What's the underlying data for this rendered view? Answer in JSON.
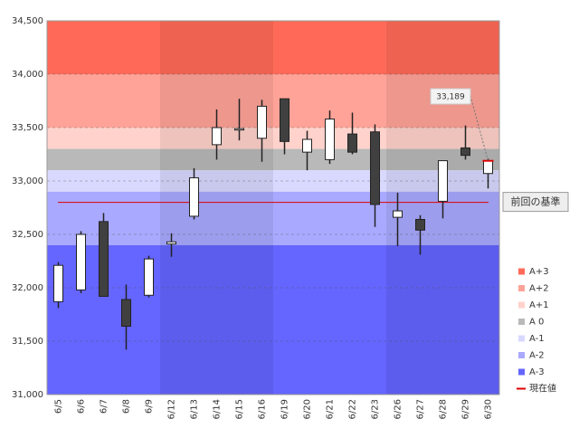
{
  "chart_data": {
    "type": "candlestick",
    "categories": [
      "6/5",
      "6/6",
      "6/7",
      "6/8",
      "6/9",
      "6/12",
      "6/13",
      "6/14",
      "6/15",
      "6/16",
      "6/19",
      "6/20",
      "6/21",
      "6/22",
      "6/23",
      "6/26",
      "6/27",
      "6/28",
      "6/29",
      "6/30"
    ],
    "open": [
      31870,
      31980,
      32620,
      31890,
      31930,
      32410,
      32670,
      33340,
      33480,
      33400,
      33770,
      33270,
      33200,
      33440,
      33460,
      32660,
      32640,
      32810,
      33310,
      33070
    ],
    "high": [
      32240,
      32530,
      32700,
      32030,
      32300,
      32510,
      33120,
      33670,
      33770,
      33760,
      33770,
      33470,
      33660,
      33640,
      33530,
      32890,
      32680,
      33190,
      33520,
      33210
    ],
    "low": [
      31810,
      31950,
      31920,
      31420,
      31910,
      32290,
      32640,
      33200,
      33380,
      33180,
      33250,
      33100,
      33160,
      33250,
      32570,
      32390,
      32310,
      32650,
      33200,
      32930
    ],
    "close": [
      32210,
      32500,
      31920,
      31640,
      32270,
      32430,
      33030,
      33500,
      33490,
      33700,
      33370,
      33390,
      33580,
      33270,
      32780,
      32720,
      32540,
      33190,
      33240,
      33189
    ],
    "ylim": [
      31000,
      34500
    ],
    "yticks": [
      {
        "value": 31000,
        "label": "31,000"
      },
      {
        "value": 31500,
        "label": "31,500"
      },
      {
        "value": 32000,
        "label": "32,000"
      },
      {
        "value": 32500,
        "label": "32,500"
      },
      {
        "value": 33000,
        "label": "33,000"
      },
      {
        "value": 33500,
        "label": "33,500"
      },
      {
        "value": 34000,
        "label": "34,000"
      },
      {
        "value": 34500,
        "label": "34,500"
      }
    ],
    "bands": [
      {
        "name": "A+3",
        "lower": 34000,
        "upper": 34500,
        "color": "#ff6a58"
      },
      {
        "name": "A+2",
        "lower": 33500,
        "upper": 34000,
        "color": "#ffa398"
      },
      {
        "name": "A+1",
        "lower": 33300,
        "upper": 33500,
        "color": "#ffd2cb"
      },
      {
        "name": "A 0",
        "lower": 33100,
        "upper": 33300,
        "color": "#b9b9b9"
      },
      {
        "name": "A-1",
        "lower": 32900,
        "upper": 33100,
        "color": "#d9d9ff"
      },
      {
        "name": "A-2",
        "lower": 32400,
        "upper": 32900,
        "color": "#a9a9ff"
      },
      {
        "name": "A-3",
        "lower": 31000,
        "upper": 32400,
        "color": "#6565ff"
      }
    ],
    "reference_line": {
      "label": "前回の基準",
      "value": 32800,
      "color": "#e00000"
    },
    "current_value": {
      "name": "現在値",
      "value": 33189,
      "label": "33,189",
      "color": "#e00000"
    }
  }
}
